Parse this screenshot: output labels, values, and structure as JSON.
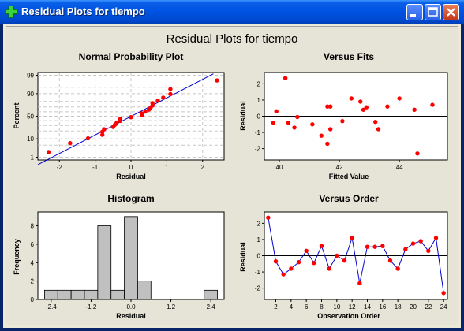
{
  "window": {
    "title": "Residual Plots for tiempo"
  },
  "figure_title": "Residual Plots for tiempo",
  "colors": {
    "point": "#ff0000",
    "line": "#0000cc",
    "bar": "#c0c0c0",
    "refline": "#000000",
    "gridline": "#c8c8c8"
  },
  "chart_data": [
    {
      "id": "npp",
      "type": "scatter",
      "title": "Normal Probability Plot",
      "xlabel": "Residual",
      "ylabel": "Percent",
      "xlim": [
        -2.6,
        2.6
      ],
      "xticks": [
        -2,
        -1,
        0,
        1,
        2
      ],
      "yticks": [
        1,
        10,
        50,
        90,
        99
      ],
      "yscale": "normal-probability",
      "grid": true,
      "fit_line": [
        [
          -2.6,
          0.3
        ],
        [
          2.3,
          99.2
        ]
      ],
      "points": [
        [
          -2.3,
          2.1
        ],
        [
          -1.7,
          6.3
        ],
        [
          -1.2,
          10.4
        ],
        [
          -0.8,
          14.6
        ],
        [
          -0.8,
          18.8
        ],
        [
          -0.75,
          22.9
        ],
        [
          -0.5,
          27.1
        ],
        [
          -0.45,
          31.3
        ],
        [
          -0.4,
          35.4
        ],
        [
          -0.3,
          39.6
        ],
        [
          -0.3,
          43.8
        ],
        [
          0.0,
          47.9
        ],
        [
          0.3,
          52.1
        ],
        [
          0.3,
          56.3
        ],
        [
          0.4,
          60.4
        ],
        [
          0.5,
          64.6
        ],
        [
          0.55,
          68.8
        ],
        [
          0.6,
          72.9
        ],
        [
          0.6,
          77.1
        ],
        [
          0.75,
          81.3
        ],
        [
          0.9,
          85.4
        ],
        [
          1.1,
          89.6
        ],
        [
          1.1,
          93.8
        ],
        [
          2.4,
          97.9
        ]
      ]
    },
    {
      "id": "fits",
      "type": "scatter",
      "title": "Versus Fits",
      "xlabel": "Fitted Value",
      "ylabel": "Residual",
      "xlim": [
        39.5,
        45.6
      ],
      "xticks": [
        40,
        42,
        44
      ],
      "ylim": [
        -2.7,
        2.7
      ],
      "yticks": [
        -2,
        -1,
        0,
        1,
        2
      ],
      "hline": 0,
      "points": [
        [
          39.8,
          -0.4
        ],
        [
          39.9,
          0.3
        ],
        [
          40.2,
          2.35
        ],
        [
          40.3,
          -0.4
        ],
        [
          40.5,
          -0.7
        ],
        [
          40.6,
          -0.05
        ],
        [
          41.1,
          -0.5
        ],
        [
          41.4,
          -1.2
        ],
        [
          41.6,
          -1.7
        ],
        [
          41.6,
          0.6
        ],
        [
          41.7,
          0.6
        ],
        [
          41.7,
          -0.8
        ],
        [
          42.1,
          -0.3
        ],
        [
          42.4,
          1.1
        ],
        [
          42.7,
          0.9
        ],
        [
          42.8,
          0.4
        ],
        [
          42.9,
          0.55
        ],
        [
          43.2,
          -0.35
        ],
        [
          43.3,
          -0.8
        ],
        [
          43.6,
          0.6
        ],
        [
          44.0,
          1.1
        ],
        [
          44.5,
          0.4
        ],
        [
          44.6,
          -2.3
        ],
        [
          45.1,
          0.7
        ]
      ]
    },
    {
      "id": "hist",
      "type": "bar",
      "title": "Histogram",
      "xlabel": "Residual",
      "ylabel": "Frequency",
      "xlim": [
        -2.8,
        2.8
      ],
      "xticks": [
        "-2.4",
        "-1.2",
        "0.0",
        "1.2",
        "2.4"
      ],
      "ylim": [
        0,
        9.5
      ],
      "yticks": [
        0,
        2,
        4,
        6,
        8
      ],
      "bin_width": 0.4,
      "bins": [
        {
          "center": -2.4,
          "count": 1
        },
        {
          "center": -2.0,
          "count": 1
        },
        {
          "center": -1.6,
          "count": 1
        },
        {
          "center": -1.2,
          "count": 1
        },
        {
          "center": -0.8,
          "count": 8
        },
        {
          "center": -0.4,
          "count": 1
        },
        {
          "center": 0.0,
          "count": 9
        },
        {
          "center": 0.4,
          "count": 2
        },
        {
          "center": 0.8,
          "count": 0
        },
        {
          "center": 1.2,
          "count": 0
        },
        {
          "center": 2.4,
          "count": 1
        }
      ]
    },
    {
      "id": "order",
      "type": "line",
      "title": "Versus Order",
      "xlabel": "Observation Order",
      "ylabel": "Residual",
      "xlim": [
        0.5,
        24.5
      ],
      "xticks": [
        2,
        4,
        6,
        8,
        10,
        12,
        14,
        16,
        18,
        20,
        22,
        24
      ],
      "ylim": [
        -2.7,
        2.7
      ],
      "yticks": [
        -2,
        -1,
        0,
        1,
        2
      ],
      "hline": 0,
      "x": [
        1,
        2,
        3,
        4,
        5,
        6,
        7,
        8,
        9,
        10,
        11,
        12,
        13,
        14,
        15,
        16,
        17,
        18,
        19,
        20,
        21,
        22,
        23,
        24
      ],
      "y": [
        2.35,
        -0.35,
        -1.15,
        -0.8,
        -0.4,
        0.3,
        -0.45,
        0.6,
        -0.8,
        0.0,
        -0.3,
        1.1,
        -1.7,
        0.55,
        0.55,
        0.6,
        -0.3,
        -0.8,
        0.4,
        0.75,
        0.9,
        0.3,
        1.1,
        -2.3
      ]
    }
  ]
}
